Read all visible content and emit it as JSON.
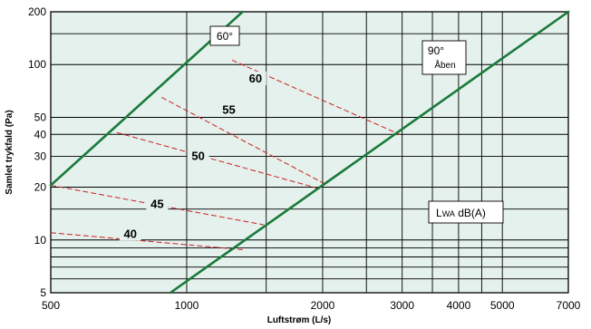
{
  "chart_data": {
    "type": "line",
    "xlabel": "Luftstrøm (L/s)",
    "ylabel": "Samlet trykfald (Pa)",
    "xscale": "log",
    "yscale": "log",
    "xlim": [
      500,
      7000
    ],
    "ylim": [
      5,
      200
    ],
    "x_ticks": [
      500,
      1000,
      2000,
      3000,
      4000,
      5000,
      7000
    ],
    "x_tick_labels": [
      "500",
      "1000",
      "2000",
      "3000",
      "4000",
      "5000",
      "7000"
    ],
    "y_ticks": [
      5,
      10,
      20,
      30,
      40,
      50,
      100,
      200
    ],
    "y_tick_labels": [
      "5",
      "10",
      "20",
      "30",
      "40",
      "50",
      "100",
      "200"
    ],
    "grid": true,
    "series": [
      {
        "name": "60°",
        "style": "solid",
        "color": "#1a7a3a",
        "x": [
          500,
          1330
        ],
        "y": [
          20.5,
          200
        ]
      },
      {
        "name": "90° Åben",
        "style": "solid",
        "color": "#1a7a3a",
        "x": [
          920,
          7000
        ],
        "y": [
          5,
          200
        ]
      }
    ],
    "sound_lines": [
      {
        "label": "60",
        "x": [
          1260,
          2960
        ],
        "y": [
          106,
          40
        ]
      },
      {
        "label": "55",
        "x": [
          880,
          2050
        ],
        "y": [
          65,
          20.5
        ]
      },
      {
        "label": "50",
        "x": [
          700,
          1980
        ],
        "y": [
          41,
          19.5
        ]
      },
      {
        "label": "45",
        "x": [
          500,
          1480
        ],
        "y": [
          20.5,
          12.2
        ]
      },
      {
        "label": "40",
        "x": [
          500,
          1330
        ],
        "y": [
          11,
          8.8
        ]
      }
    ],
    "annotations": {
      "box_60": "60°",
      "box_90_top": "90°",
      "box_90_bottom": "Åben",
      "lwa_prefix": "L",
      "lwa_sub": "WA",
      "lwa_suffix": " dB(A)"
    },
    "colors": {
      "plot_background": "#e4f1ed",
      "curve": "#1a7a3a",
      "sound_line": "#cc2222",
      "grid": "#000000"
    }
  }
}
